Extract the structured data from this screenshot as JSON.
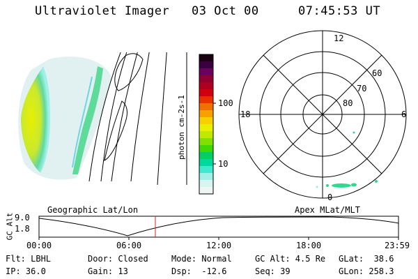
{
  "header": {
    "title": "Ultraviolet Imager",
    "date": "03 Oct 00",
    "time": "07:45:53 UT"
  },
  "colorbar": {
    "unit_label": "photon cm-2s-1",
    "ticks": [
      "100",
      "10"
    ],
    "colors": [
      "#1a0010",
      "#3a0040",
      "#6a0060",
      "#900030",
      "#b00020",
      "#d00010",
      "#e83000",
      "#f07000",
      "#f8a000",
      "#f8d000",
      "#e8f000",
      "#c0e800",
      "#80e000",
      "#40d800",
      "#00d060",
      "#00d8a0",
      "#40e8d0",
      "#a0f0e8",
      "#d8f4f0",
      "#eef6f4"
    ]
  },
  "polar": {
    "mlt_labels": {
      "top": "12",
      "left": "18",
      "right": "6",
      "bottom": "0"
    },
    "lat_labels": [
      "60",
      "70",
      "80"
    ]
  },
  "timeline": {
    "left_title": "Geographic Lat/Lon",
    "right_title": "Apex MLat/MLT",
    "axis_label": "GC Alt",
    "y_ticks": [
      "9.0",
      "1.8"
    ],
    "x_ticks": [
      "00:00",
      "06:00",
      "12:00",
      "18:00",
      "23:59"
    ],
    "cursor_time": "07:45:53",
    "cursor_fraction": 0.3236
  },
  "status": {
    "flt": "Flt: LBHL",
    "ip": "IP: 36.0",
    "door": "Door: Closed",
    "gain": "Gain: 13",
    "mode": "Mode: Normal",
    "dsp": "Dsp:  -12.6",
    "gcalt": "GC Alt: 4.5 Re",
    "seq": "Seq: 39",
    "glat": "GLat:  38.6",
    "glon": "GLon: 258.3"
  }
}
